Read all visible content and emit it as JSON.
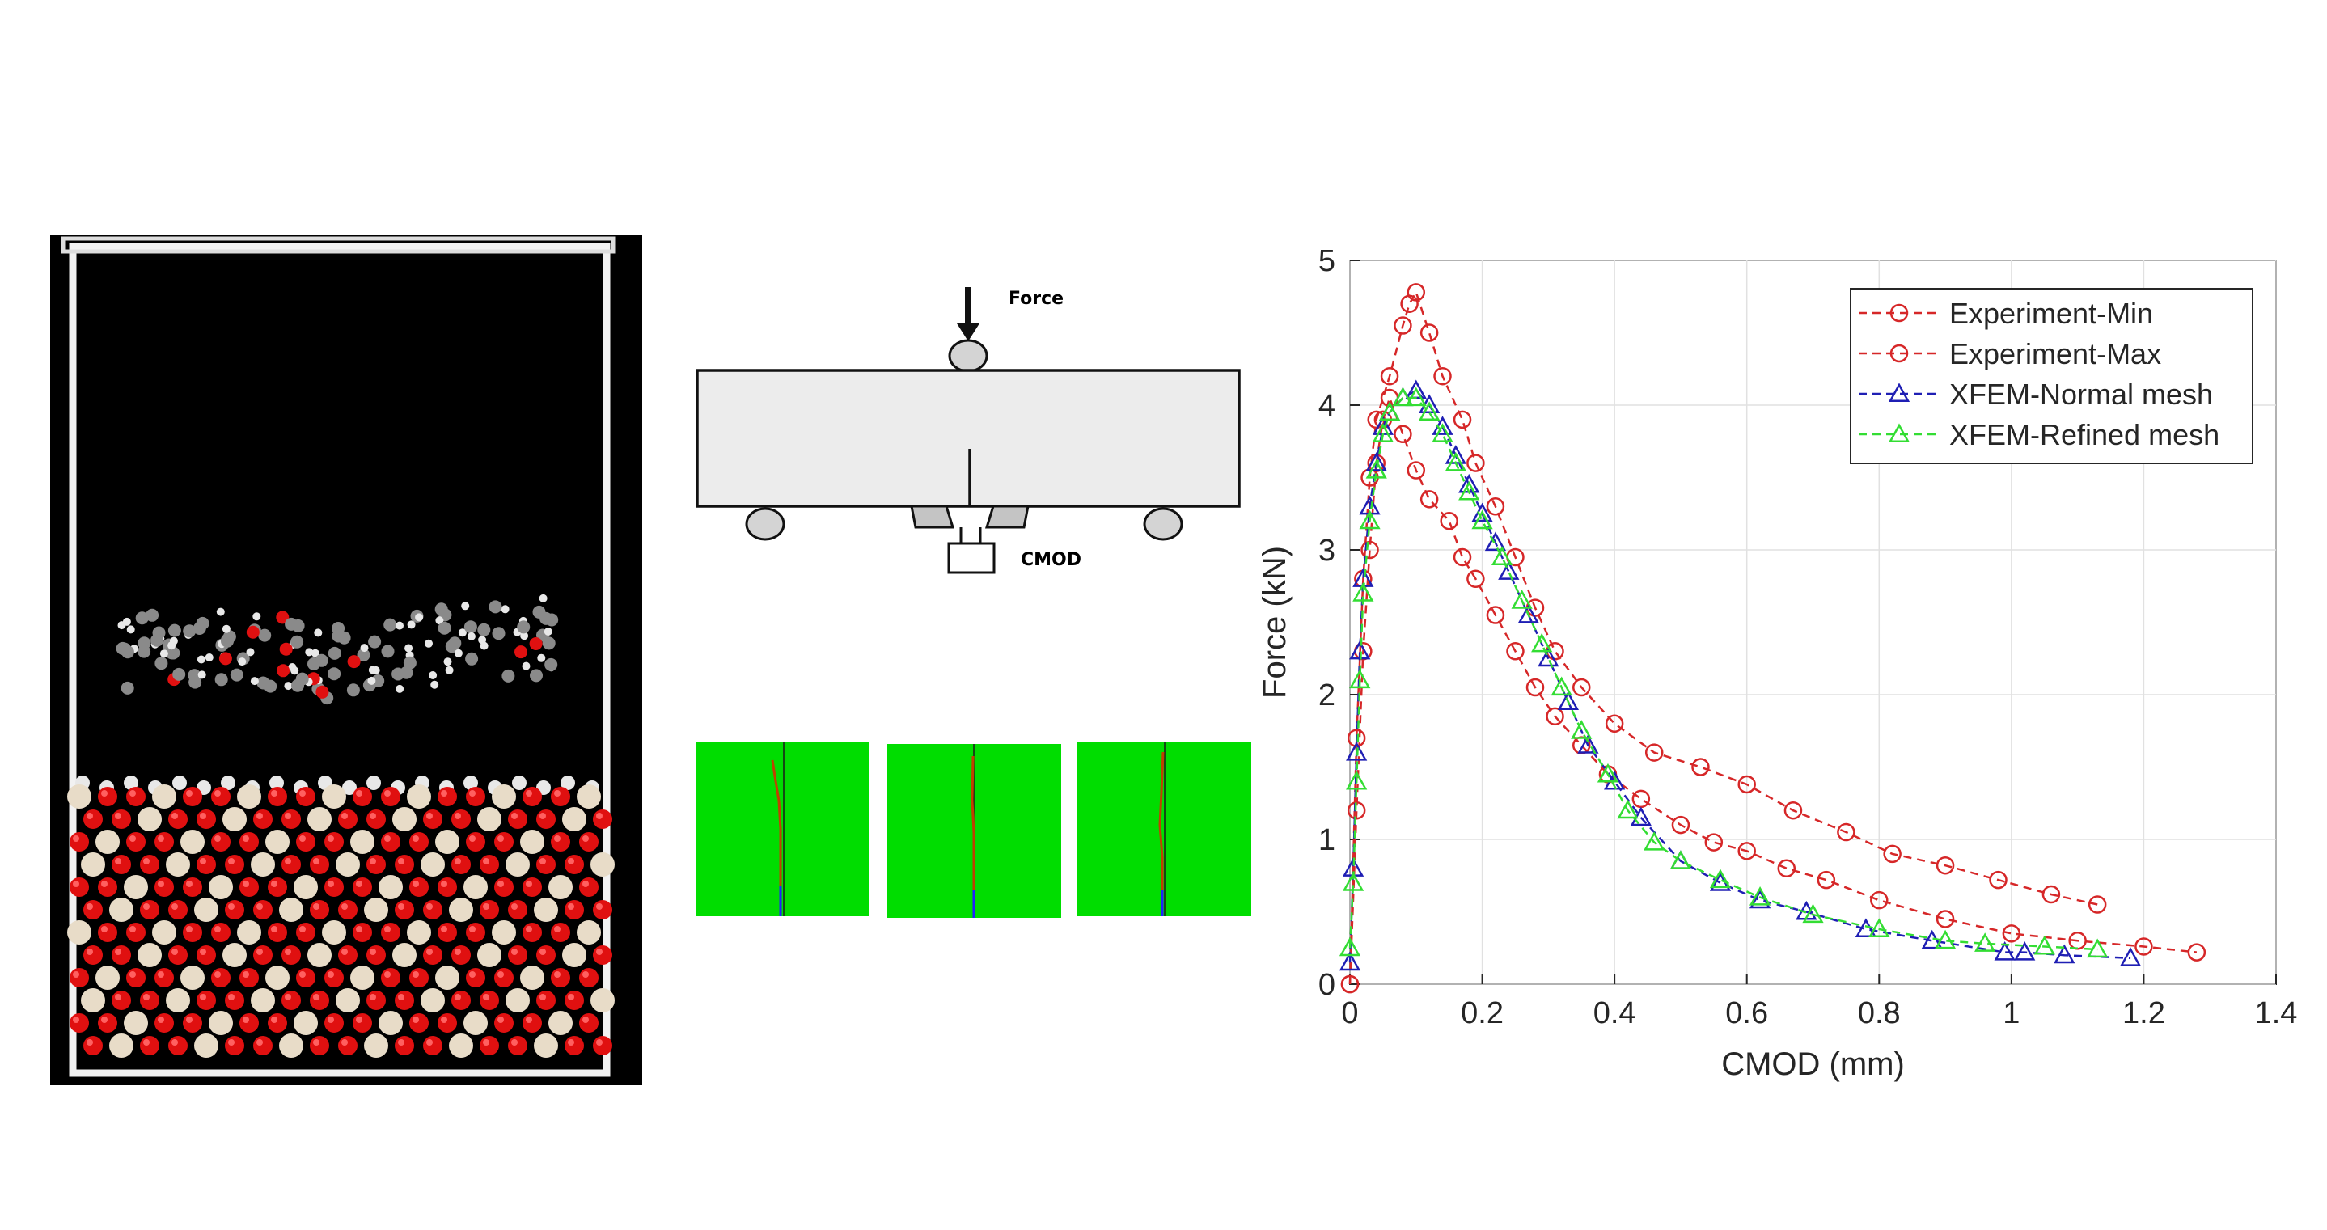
{
  "schematic": {
    "force_label": "Force",
    "cmod_label": "CMOD"
  },
  "colors": {
    "experiment": "#d62728",
    "xfem_normal": "#1f1fb4",
    "xfem_refined": "#33dd33",
    "green_panel": "#00dd00",
    "atom_oxygen": "#e01010",
    "atom_silicon": "#e8dcc8",
    "atom_carbon": "#8a8a8a",
    "atom_hydrogen": "#e8e8e8"
  },
  "chart_data": {
    "type": "line",
    "xlabel": "CMOD (mm)",
    "ylabel": "Force (kN)",
    "xlim": [
      0,
      1.4
    ],
    "ylim": [
      0,
      5
    ],
    "xticks": [
      "0",
      "0.2",
      "0.4",
      "0.6",
      "0.8",
      "1",
      "1.2",
      "1.4"
    ],
    "yticks": [
      "0",
      "1",
      "2",
      "3",
      "4",
      "5"
    ],
    "grid": true,
    "legend_position": "top-right",
    "series": [
      {
        "name": "Experiment-Min",
        "marker": "circle",
        "color": "#d62728",
        "x": [
          0,
          0.01,
          0.02,
          0.03,
          0.04,
          0.06,
          0.08,
          0.09,
          0.1,
          0.12,
          0.14,
          0.17,
          0.19,
          0.22,
          0.25,
          0.28,
          0.31,
          0.35,
          0.4,
          0.46,
          0.53,
          0.6,
          0.67,
          0.75,
          0.82,
          0.9,
          0.98,
          1.06,
          1.13
        ],
        "y": [
          0,
          1.7,
          2.8,
          3.5,
          3.9,
          4.2,
          4.55,
          4.7,
          4.78,
          4.5,
          4.2,
          3.9,
          3.6,
          3.3,
          2.95,
          2.6,
          2.3,
          2.05,
          1.8,
          1.6,
          1.5,
          1.38,
          1.2,
          1.05,
          0.9,
          0.82,
          0.72,
          0.62,
          0.55
        ]
      },
      {
        "name": "Experiment-Max",
        "marker": "circle",
        "color": "#d62728",
        "x": [
          0,
          0.01,
          0.02,
          0.03,
          0.04,
          0.05,
          0.06,
          0.08,
          0.1,
          0.12,
          0.15,
          0.17,
          0.19,
          0.22,
          0.25,
          0.28,
          0.31,
          0.35,
          0.39,
          0.44,
          0.5,
          0.55,
          0.6,
          0.66,
          0.72,
          0.8,
          0.9,
          1.0,
          1.1,
          1.2,
          1.28
        ],
        "y": [
          0,
          1.2,
          2.3,
          3.0,
          3.6,
          3.9,
          4.05,
          3.8,
          3.55,
          3.35,
          3.2,
          2.95,
          2.8,
          2.55,
          2.3,
          2.05,
          1.85,
          1.65,
          1.45,
          1.28,
          1.1,
          0.98,
          0.92,
          0.8,
          0.72,
          0.58,
          0.45,
          0.35,
          0.3,
          0.26,
          0.22
        ]
      },
      {
        "name": "XFEM-Normal mesh",
        "marker": "triangle",
        "color": "#1f1fb4",
        "x": [
          0,
          0.005,
          0.01,
          0.015,
          0.02,
          0.03,
          0.04,
          0.05,
          0.06,
          0.08,
          0.1,
          0.12,
          0.14,
          0.16,
          0.18,
          0.2,
          0.22,
          0.24,
          0.27,
          0.3,
          0.33,
          0.36,
          0.4,
          0.44,
          0.5,
          0.56,
          0.62,
          0.69,
          0.78,
          0.88,
          0.99,
          1.02,
          1.08,
          1.18
        ],
        "y": [
          0.15,
          0.8,
          1.6,
          2.3,
          2.8,
          3.3,
          3.6,
          3.85,
          3.95,
          4.05,
          4.1,
          4.0,
          3.85,
          3.65,
          3.45,
          3.25,
          3.05,
          2.85,
          2.55,
          2.25,
          1.95,
          1.65,
          1.4,
          1.15,
          0.85,
          0.7,
          0.58,
          0.5,
          0.38,
          0.3,
          0.22,
          0.22,
          0.2,
          0.18
        ]
      },
      {
        "name": "XFEM-Refined mesh",
        "marker": "triangle",
        "color": "#33dd33",
        "x": [
          0,
          0.005,
          0.01,
          0.015,
          0.02,
          0.03,
          0.04,
          0.05,
          0.06,
          0.08,
          0.1,
          0.12,
          0.14,
          0.16,
          0.18,
          0.2,
          0.23,
          0.26,
          0.29,
          0.32,
          0.35,
          0.39,
          0.42,
          0.46,
          0.5,
          0.56,
          0.62,
          0.7,
          0.8,
          0.9,
          0.96,
          1.05,
          1.13
        ],
        "y": [
          0.25,
          0.7,
          1.4,
          2.1,
          2.7,
          3.2,
          3.55,
          3.8,
          3.95,
          4.05,
          4.05,
          3.95,
          3.8,
          3.6,
          3.4,
          3.2,
          2.95,
          2.65,
          2.35,
          2.05,
          1.75,
          1.45,
          1.2,
          0.98,
          0.85,
          0.72,
          0.6,
          0.48,
          0.38,
          0.3,
          0.28,
          0.26,
          0.24
        ]
      }
    ]
  }
}
